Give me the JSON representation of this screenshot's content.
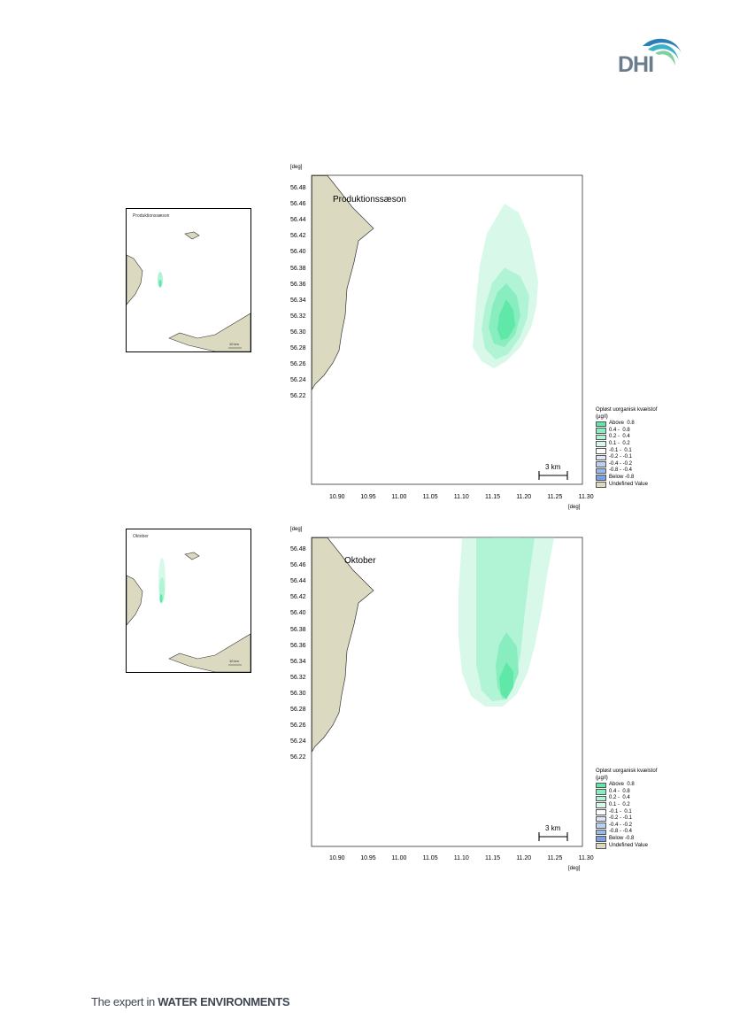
{
  "header": {
    "logo_text": "DHI"
  },
  "footer": {
    "prefix": "The expert in ",
    "bold": "WATER ENVIRONMENTS"
  },
  "axis": {
    "y_unit": "[deg]",
    "x_unit": "[deg]",
    "y_ticks": [
      "56.48",
      "56.46",
      "56.44",
      "56.42",
      "56.40",
      "56.38",
      "56.36",
      "56.34",
      "56.32",
      "56.30",
      "56.28",
      "56.26",
      "56.24",
      "56.22"
    ],
    "x_ticks": [
      "10.90",
      "10.95",
      "11.00",
      "11.05",
      "11.10",
      "11.15",
      "11.20",
      "11.25",
      "11.30"
    ]
  },
  "legend": {
    "title_line1": "Opløst uorganisk kvælstof",
    "title_line2": "(µg/l)",
    "items": [
      {
        "label": "Above  0.8",
        "color": "#5fe8a8"
      },
      {
        "label": "0.4 -  0.8",
        "color": "#88eebf"
      },
      {
        "label": "0.2 -  0.4",
        "color": "#b1f4d5"
      },
      {
        "label": "0.1 -  0.2",
        "color": "#d8f9ea"
      },
      {
        "label": "-0.1 -  0.1",
        "color": "#ffffff"
      },
      {
        "label": "-0.2 - -0.1",
        "color": "#dde7f7"
      },
      {
        "label": "-0.4 - -0.2",
        "color": "#bcd0f0"
      },
      {
        "label": "-0.8 - -0.4",
        "color": "#9ab8ea"
      },
      {
        "label": "Below -0.8",
        "color": "#7aa0e3"
      },
      {
        "label": "Undefined Value",
        "color": "#dcd9c1"
      }
    ]
  },
  "panels": [
    {
      "title": "Produktionssæson",
      "inset_label": "Produktionssæson",
      "scale_label": "3 km",
      "inset_scale": "10 km"
    },
    {
      "title": "Oktober",
      "inset_label": "Oktober",
      "scale_label": "3 km",
      "inset_scale": "10 km"
    }
  ]
}
